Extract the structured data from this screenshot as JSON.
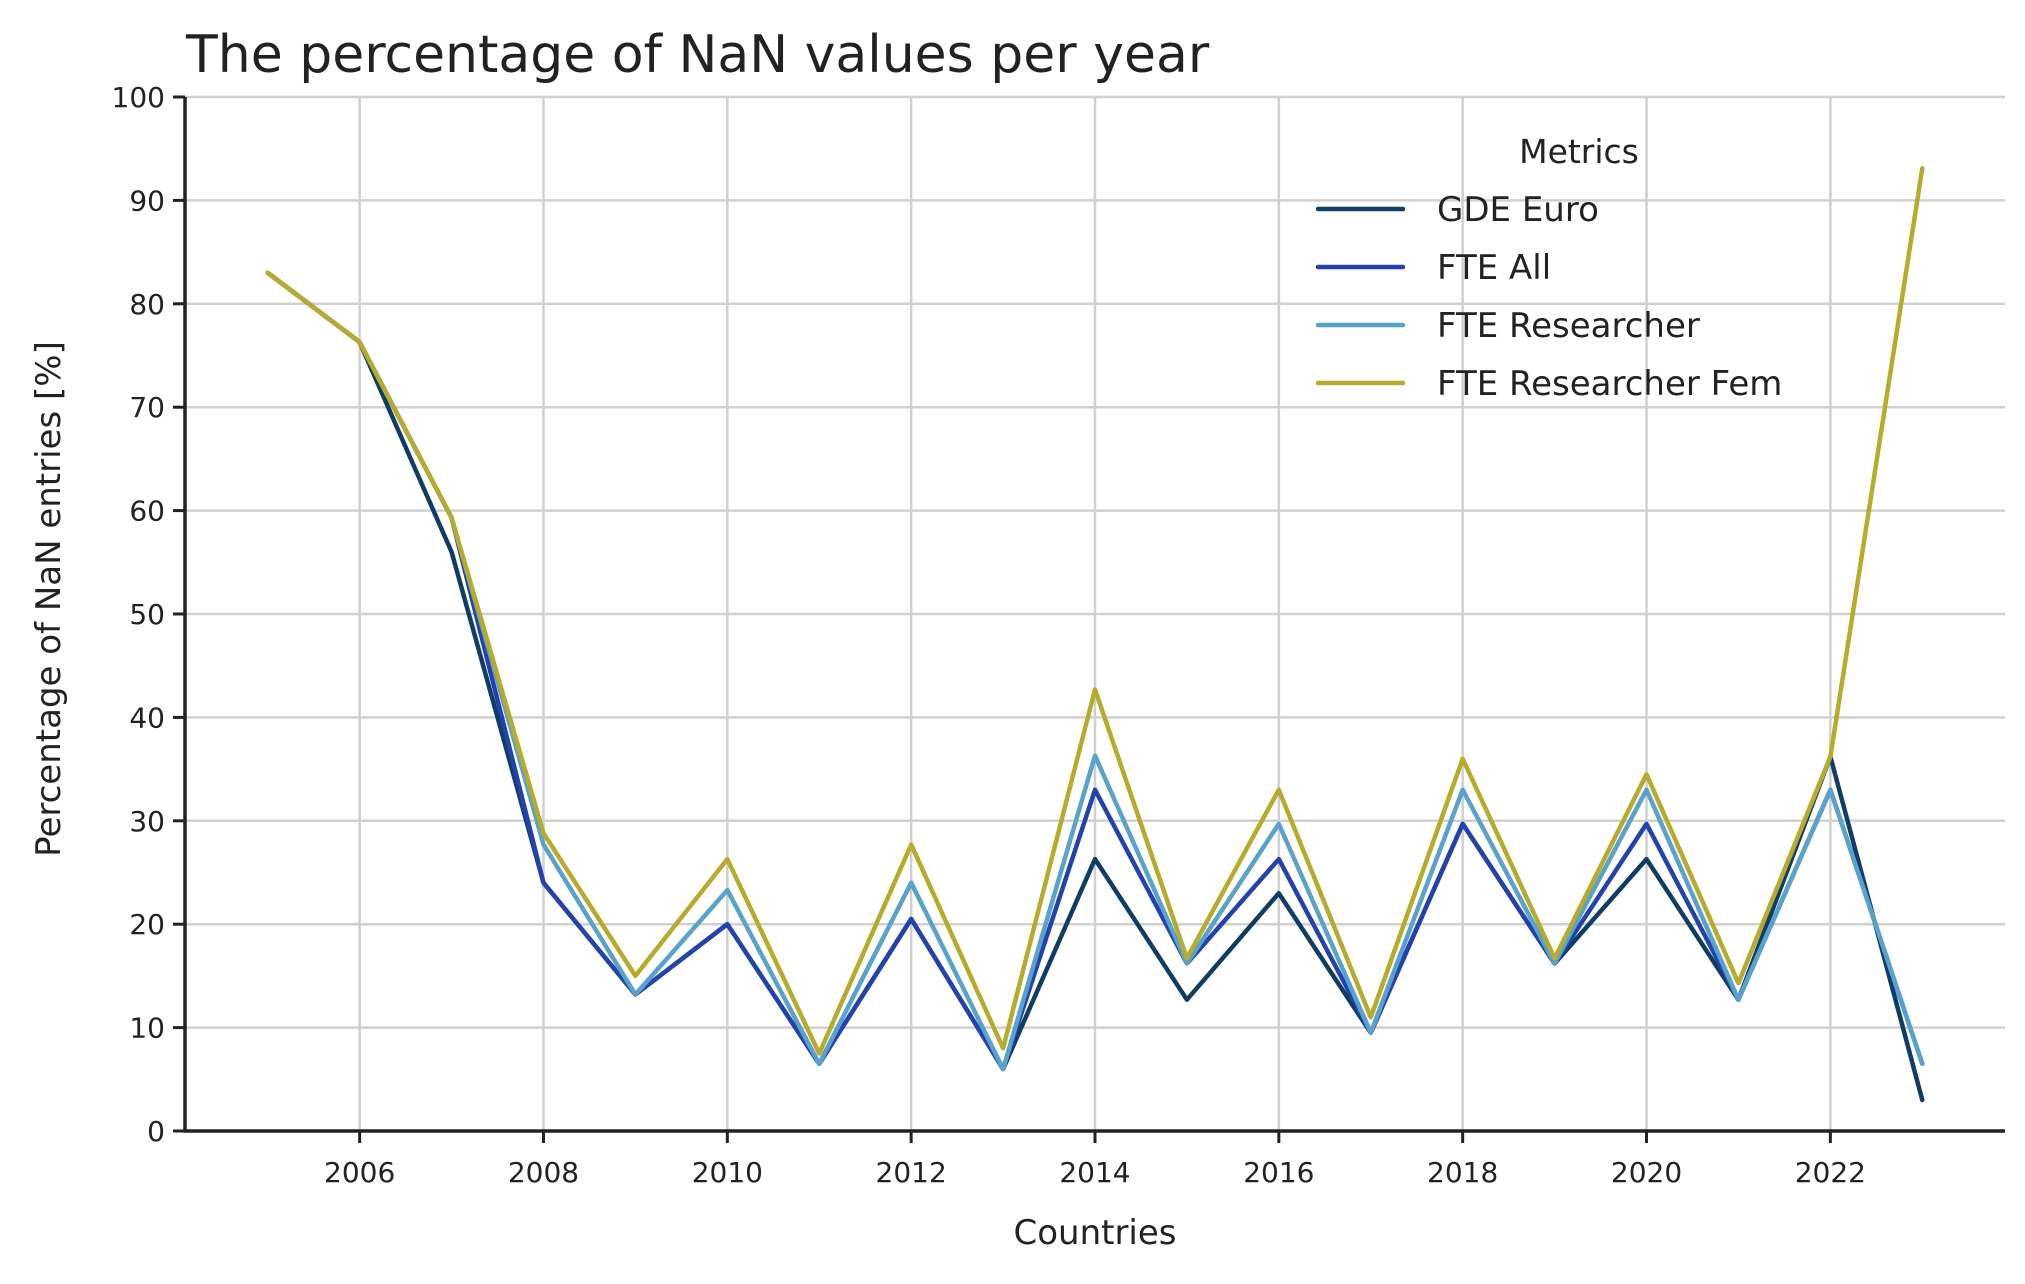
{
  "chart_data": {
    "type": "line",
    "title": "The percentage of NaN values per year",
    "xlabel": "Countries",
    "ylabel": "Percentage of NaN entries [%]",
    "x": [
      2005,
      2006,
      2007,
      2008,
      2009,
      2010,
      2011,
      2012,
      2013,
      2014,
      2015,
      2016,
      2017,
      2018,
      2019,
      2020,
      2021,
      2022,
      2023
    ],
    "xlim": [
      2004.1,
      2023.9
    ],
    "ylim": [
      0,
      100
    ],
    "xticks": [
      2006,
      2008,
      2010,
      2012,
      2014,
      2016,
      2018,
      2020,
      2022
    ],
    "yticks": [
      0,
      10,
      20,
      30,
      40,
      50,
      60,
      70,
      80,
      90,
      100
    ],
    "grid": true,
    "legend": {
      "title": "Metrics",
      "placement": "top-right"
    },
    "series": [
      {
        "name": "GDE Euro",
        "color": "#0f3d66",
        "values": [
          83,
          76.3,
          56,
          24,
          13.2,
          20,
          6.5,
          20.5,
          6,
          26.3,
          12.7,
          23,
          9.5,
          29.7,
          16.2,
          26.3,
          12.7,
          36.2,
          3
        ]
      },
      {
        "name": "FTE All",
        "color": "#2442ad",
        "values": [
          83,
          76.3,
          59.3,
          24,
          13.2,
          20,
          6.5,
          20.5,
          6,
          33,
          16.2,
          26.3,
          9.5,
          29.7,
          16.2,
          29.7,
          12.7,
          33,
          6.5
        ]
      },
      {
        "name": "FTE Researcher",
        "color": "#58a2cb",
        "values": [
          83,
          76.3,
          59.3,
          27.7,
          13.2,
          23.3,
          6.5,
          24,
          6,
          36.3,
          16.2,
          29.7,
          9.5,
          33,
          16.2,
          33,
          12.7,
          33,
          6.5
        ]
      },
      {
        "name": "FTE Researcher Fem",
        "color": "#b6ab2b",
        "values": [
          83,
          76.3,
          59.3,
          28.8,
          15,
          26.3,
          7.5,
          27.7,
          8,
          42.7,
          16.7,
          33,
          11,
          36,
          16.7,
          34.5,
          14.3,
          36.2,
          93.1
        ]
      }
    ]
  }
}
